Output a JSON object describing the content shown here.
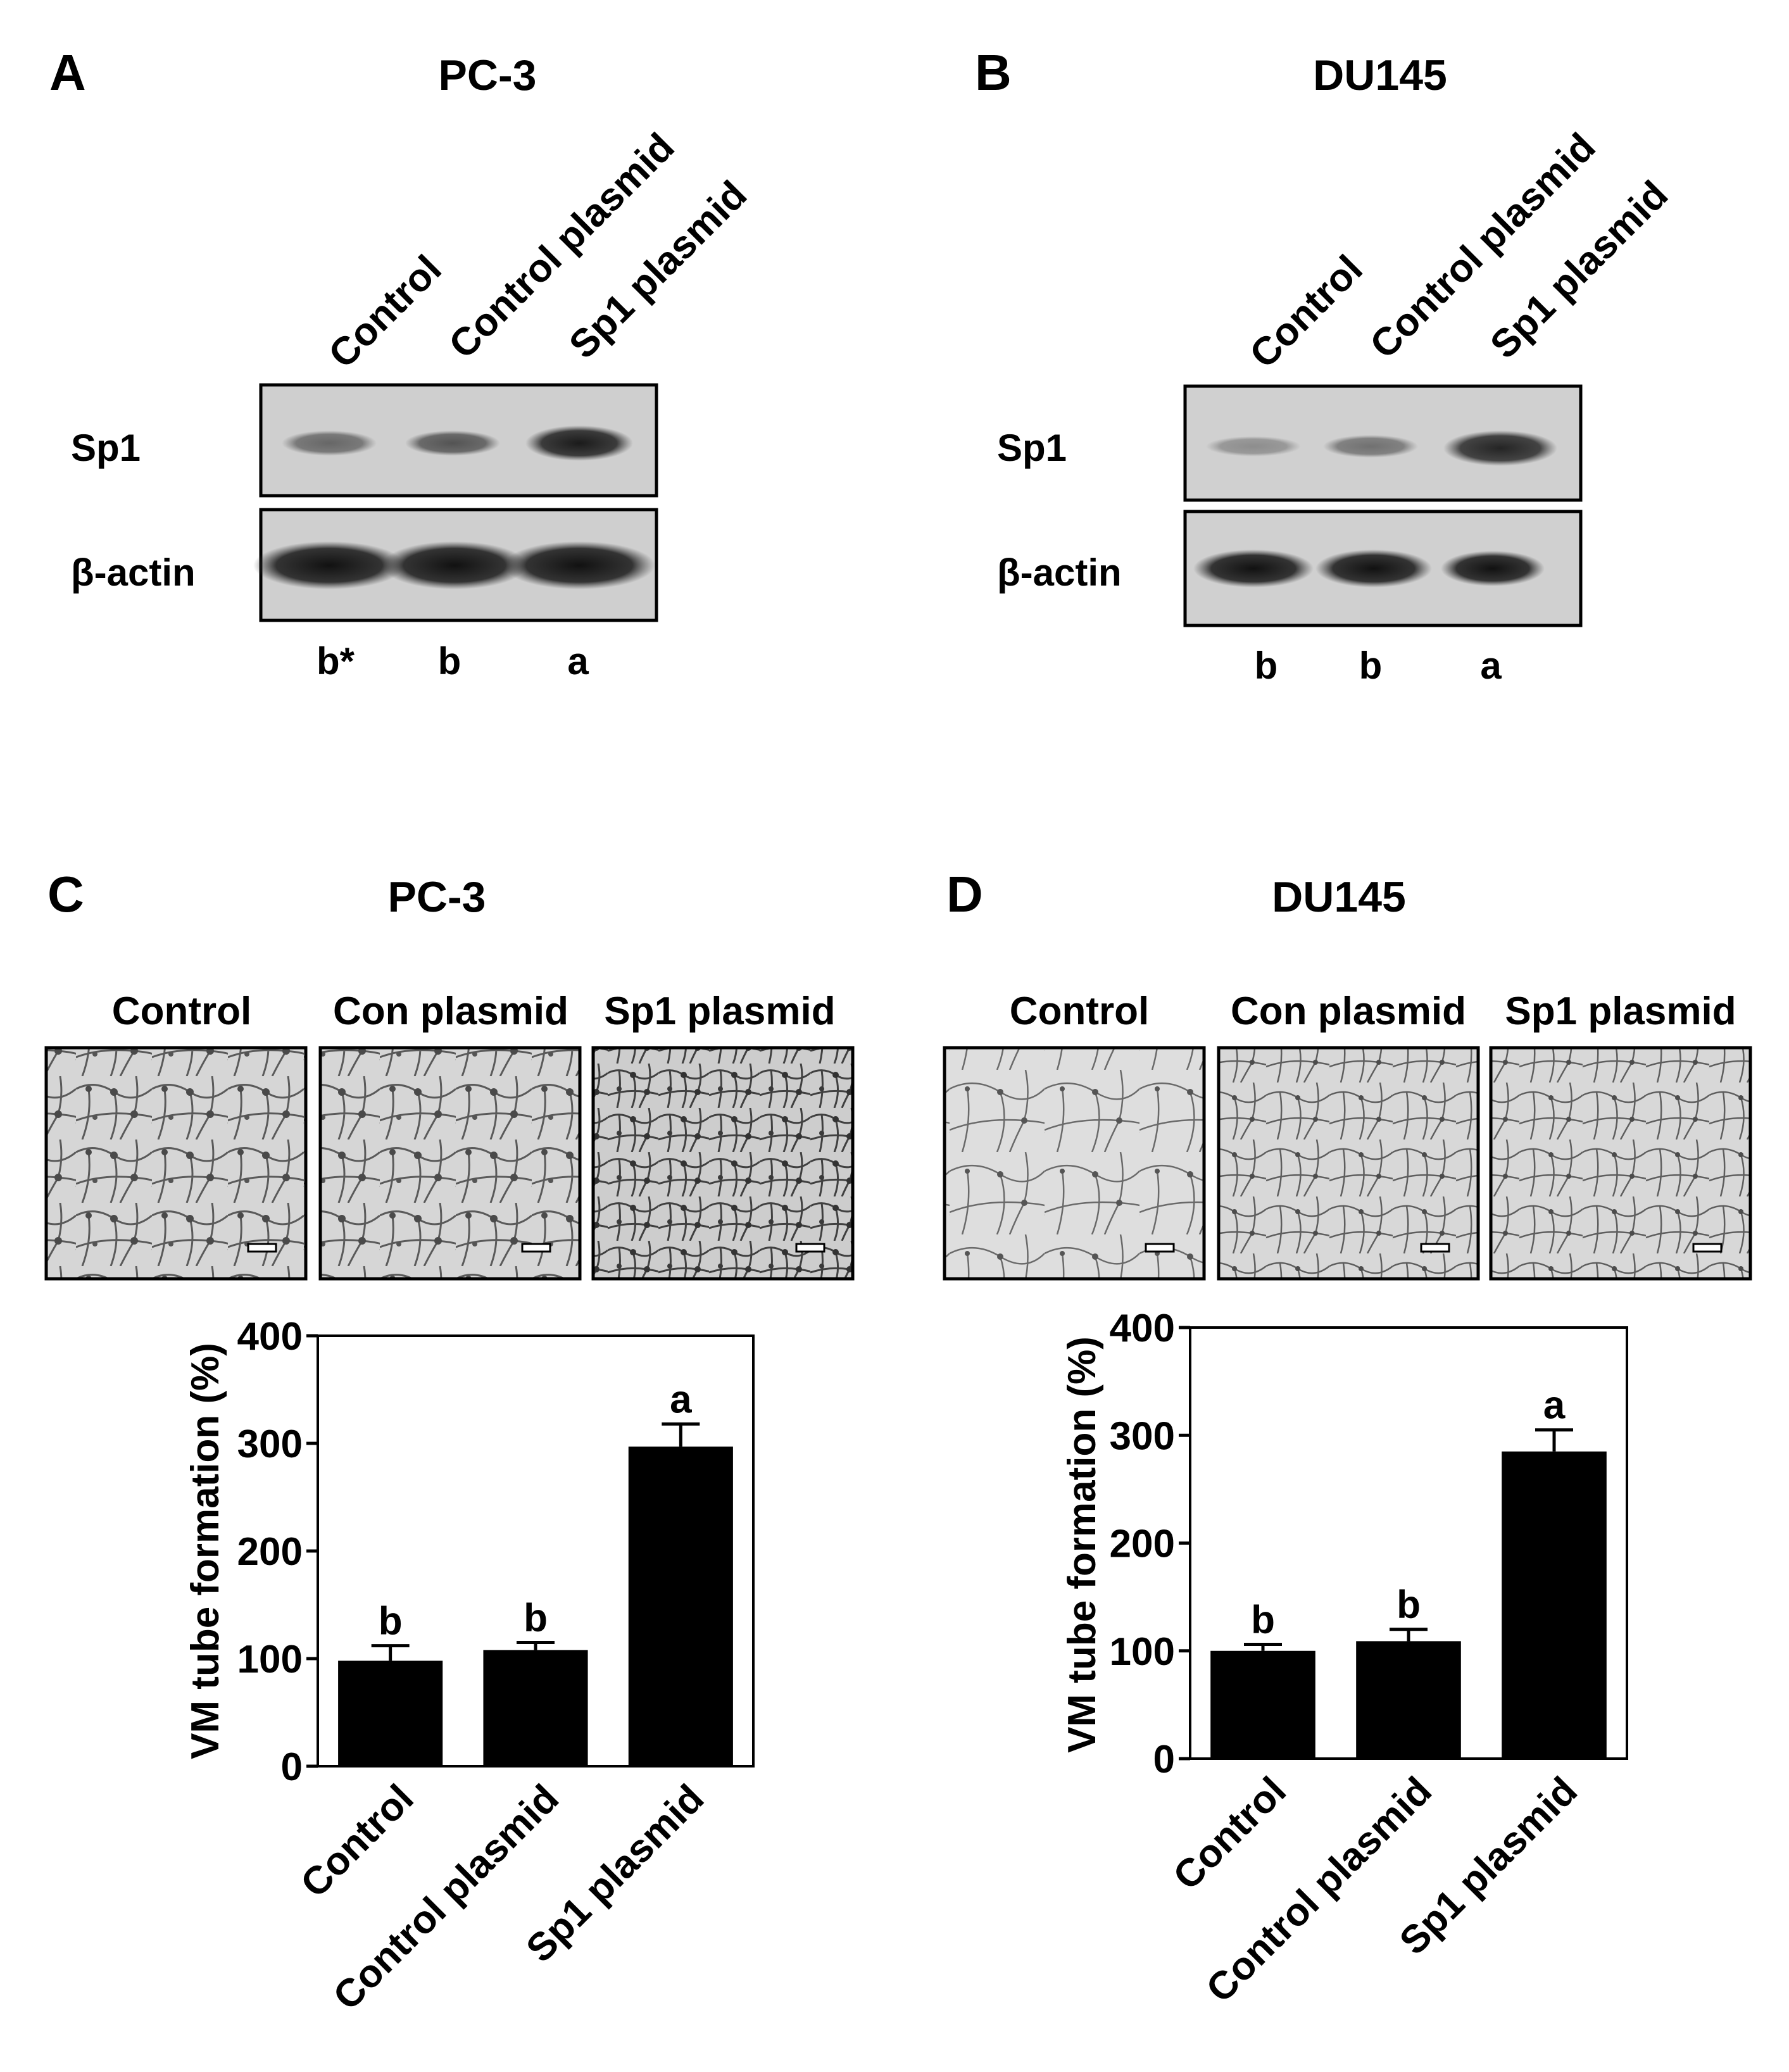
{
  "panels": {
    "A": {
      "letter": "A",
      "cell_line": "PC-3",
      "lanes": [
        "Control",
        "Control plasmid",
        "Sp1 plasmid"
      ],
      "rows": [
        "Sp1",
        "β-actin"
      ],
      "significance": [
        "b*",
        "b",
        "a"
      ]
    },
    "B": {
      "letter": "B",
      "cell_line": "DU145",
      "lanes": [
        "Control",
        "Control plasmid",
        "Sp1 plasmid"
      ],
      "rows": [
        "Sp1",
        "β-actin"
      ],
      "significance": [
        "b",
        "b",
        "a"
      ]
    },
    "C": {
      "letter": "C",
      "cell_line": "PC-3",
      "image_labels": [
        "Control",
        "Con plasmid",
        "Sp1 plasmid"
      ]
    },
    "D": {
      "letter": "D",
      "cell_line": "DU145",
      "image_labels": [
        "Control",
        "Con plasmid",
        "Sp1 plasmid"
      ]
    }
  },
  "colors": {
    "bar": "#000000",
    "blot_bg": "#cfcfcf",
    "micrograph_bg": "#d9d9d9"
  },
  "chart_data": [
    {
      "panel": "C",
      "type": "bar",
      "categories": [
        "Control",
        "Control plasmid",
        "Sp1 plasmid"
      ],
      "values": [
        98,
        108,
        297
      ],
      "errors": [
        14,
        7,
        21
      ],
      "significance": [
        "b",
        "b",
        "a"
      ],
      "ylabel": "VM tube formation (%)",
      "xlabel": "",
      "ylim": [
        0,
        400
      ],
      "yticks": [
        0,
        100,
        200,
        300,
        400
      ]
    },
    {
      "panel": "D",
      "type": "bar",
      "categories": [
        "Control",
        "Control plasmid",
        "Sp1 plasmid"
      ],
      "values": [
        100,
        109,
        285
      ],
      "errors": [
        6,
        11,
        20
      ],
      "significance": [
        "b",
        "b",
        "a"
      ],
      "ylabel": "VM tube formation (%)",
      "xlabel": "",
      "ylim": [
        0,
        400
      ],
      "yticks": [
        0,
        100,
        200,
        300,
        400
      ]
    }
  ]
}
